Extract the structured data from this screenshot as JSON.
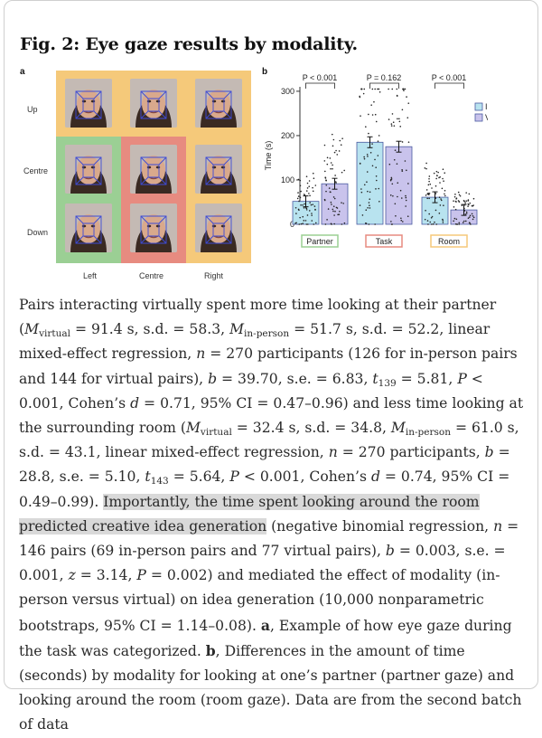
{
  "figure": {
    "title": "Fig. 2: Eye gaze results by modality.",
    "panel_a_letter": "a",
    "panel_b_letter": "b",
    "rows": [
      "Up",
      "Centre",
      "Down"
    ],
    "cols": [
      "Left",
      "Centre",
      "Right"
    ],
    "colors": {
      "room": "#f5c97a",
      "partner": "#9bcf94",
      "task": "#e78b80",
      "inperson": "#b8e3ef",
      "virtual": "#c9c3ec"
    }
  },
  "chart_data": {
    "type": "bar",
    "categories": [
      "Partner",
      "Task",
      "Room"
    ],
    "series": [
      {
        "name": "In-person",
        "values": [
          51.7,
          185,
          61.0
        ]
      },
      {
        "name": "Virtual",
        "values": [
          91.4,
          175,
          32.4
        ]
      }
    ],
    "pvalues": [
      "P < 0.001",
      "P = 0.162",
      "P < 0.001"
    ],
    "ylabel": "Time (s)",
    "yticks": [
      "0",
      "100",
      "200",
      "300"
    ],
    "ylim": [
      0,
      310
    ],
    "legend": "top-right"
  },
  "caption": {
    "s1_a": "Pairs interacting virtually spent more time looking at their partner (",
    "m": "M",
    "sub_virtual": "virtual",
    "s1_b": " = 91.4 s, s.d. = 58.3, ",
    "sub_inperson": "in-person",
    "s1_c": " = 51.7 s, s.d. = 52.2, linear mixed-effect regression, ",
    "n": "n",
    "s1_d": " = 270 participants (126 for in-person pairs and 144 for virtual pairs), ",
    "b": "b",
    "s1_e": " = 39.70, s.e. = 6.83, ",
    "t": "t",
    "sub_t1": "139",
    "s1_f": " = 5.81, ",
    "P": "P",
    "s1_g": " < 0.001, Cohen’s ",
    "d": "d",
    "s1_h": " = 0.71, 95% CI = 0.47–0.96) and less time looking at the surrounding room (",
    "s2_a": " = 32.4 s, s.d. = 34.8, ",
    "s2_b": " = 61.0 s, s.d. = 43.1, linear mixed-effect regression, ",
    "s2_c": " = 270 participants, ",
    "s2_d": " = 28.8, s.e. = 5.10, ",
    "sub_t2": "143",
    "s2_e": " = 5.64, ",
    "s2_f": " < 0.001, Cohen’s ",
    "s2_g": " = 0.74, 95% CI = 0.49–0.99).",
    "highlight": "Importantly, the time spent looking around the room predicted creative idea generation",
    "s3_a": " (negative binomial regression, ",
    "s3_b": " = 146 pairs (69 in-person pairs and 77 virtual pairs), ",
    "s3_c": " = 0.003, s.e. = 0.001, ",
    "z": "z",
    "s3_d": " = 3.14, ",
    "s3_e": " = 0.002) and mediated the effect of modality (in-person versus virtual) on idea generation (10,000 nonparametric bootstraps, 95% CI = 1.14–0.08). ",
    "a_bold": "a",
    "s3_f": ", Example of how eye gaze during the task was categorized. ",
    "b_bold": "b",
    "s3_g": ", Differences in the amount of time (seconds) by modality for looking at one’s partner (partner gaze) and looking around the room (room gaze). Data are from the second batch of data"
  }
}
